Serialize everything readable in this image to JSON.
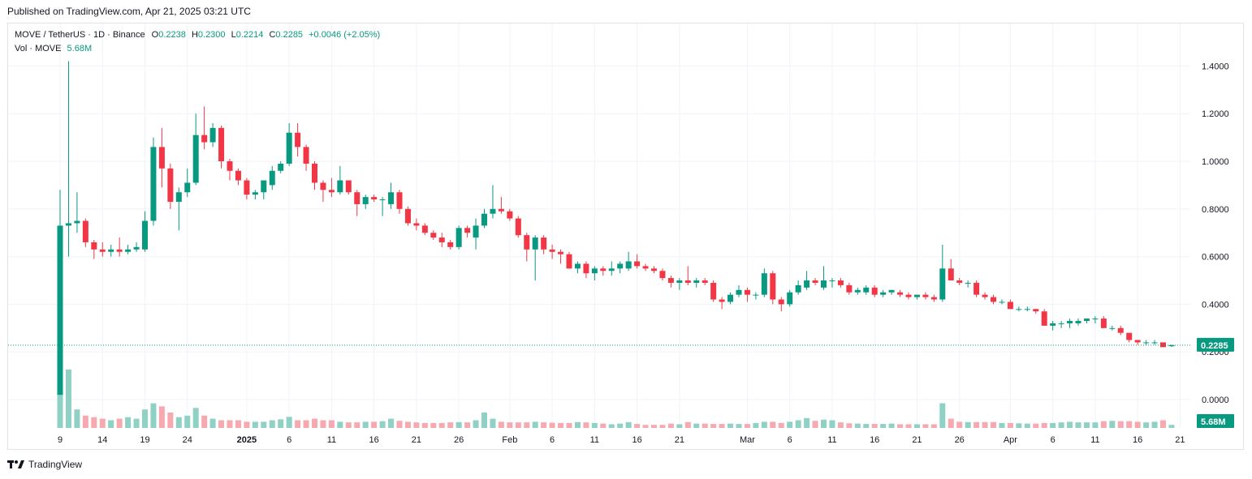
{
  "header": {
    "published": "Published on TradingView.com, Apr 21, 2025 03:21 UTC"
  },
  "legend": {
    "symbol": "MOVE / TetherUS · 1D · Binance",
    "open_label": "O",
    "open": "0.2238",
    "high_label": "H",
    "high": "0.2300",
    "low_label": "L",
    "low": "0.2214",
    "close_label": "C",
    "close": "0.2285",
    "change": "+0.0046 (+2.05%)",
    "vol_label": "Vol · MOVE",
    "vol_value": "5.68M"
  },
  "footer": {
    "brand": "TradingView"
  },
  "colors": {
    "up": "#089981",
    "down": "#f23645",
    "up_vol": "#8fd1c5",
    "down_vol": "#f7a9b0",
    "grid": "#f0f3fa"
  },
  "chart_data": {
    "type": "candlestick",
    "title": "MOVE / TetherUS · 1D · Binance",
    "ylabel": "",
    "ylim": [
      -0.12,
      1.5
    ],
    "yticks": [
      0.0,
      0.2,
      0.4,
      0.6,
      0.8,
      1.0,
      1.2,
      1.4
    ],
    "ytick_labels": [
      "0.0000",
      "0.2000",
      "0.4000",
      "0.6000",
      "0.8000",
      "1.0000",
      "1.2000",
      "1.4000"
    ],
    "last_price_label": "0.2285",
    "last_price": 0.2285,
    "volume_label": "5.68M",
    "x_ticks": [
      {
        "day": 0,
        "label": "9"
      },
      {
        "day": 5,
        "label": "14"
      },
      {
        "day": 10,
        "label": "19"
      },
      {
        "day": 15,
        "label": "24"
      },
      {
        "day": 22,
        "label": "2025"
      },
      {
        "day": 27,
        "label": "6"
      },
      {
        "day": 32,
        "label": "11"
      },
      {
        "day": 37,
        "label": "16"
      },
      {
        "day": 42,
        "label": "21"
      },
      {
        "day": 47,
        "label": "26"
      },
      {
        "day": 53,
        "label": "Feb"
      },
      {
        "day": 58,
        "label": "6"
      },
      {
        "day": 63,
        "label": "11"
      },
      {
        "day": 68,
        "label": "16"
      },
      {
        "day": 73,
        "label": "21"
      },
      {
        "day": 81,
        "label": "Mar"
      },
      {
        "day": 86,
        "label": "6"
      },
      {
        "day": 91,
        "label": "11"
      },
      {
        "day": 96,
        "label": "16"
      },
      {
        "day": 101,
        "label": "21"
      },
      {
        "day": 106,
        "label": "26"
      },
      {
        "day": 112,
        "label": "Apr"
      },
      {
        "day": 117,
        "label": "6"
      },
      {
        "day": 122,
        "label": "11"
      },
      {
        "day": 127,
        "label": "16"
      },
      {
        "day": 132,
        "label": "21"
      }
    ],
    "candles": [
      [
        0.02,
        0.88,
        0.02,
        0.73,
        31.0
      ],
      [
        0.73,
        1.42,
        0.6,
        0.74,
        19.0
      ],
      [
        0.74,
        0.87,
        0.7,
        0.75,
        6.0
      ],
      [
        0.75,
        0.76,
        0.64,
        0.66,
        4.0
      ],
      [
        0.66,
        0.67,
        0.59,
        0.63,
        3.5
      ],
      [
        0.63,
        0.66,
        0.6,
        0.62,
        3.0
      ],
      [
        0.62,
        0.65,
        0.6,
        0.63,
        2.5
      ],
      [
        0.63,
        0.68,
        0.6,
        0.62,
        3.0
      ],
      [
        0.62,
        0.65,
        0.61,
        0.63,
        3.5
      ],
      [
        0.63,
        0.66,
        0.62,
        0.64,
        3.0
      ],
      [
        0.63,
        0.79,
        0.62,
        0.75,
        6.0
      ],
      [
        0.75,
        1.1,
        0.73,
        1.06,
        8.0
      ],
      [
        1.06,
        1.14,
        0.89,
        0.97,
        7.0
      ],
      [
        0.97,
        0.99,
        0.8,
        0.83,
        5.0
      ],
      [
        0.83,
        0.89,
        0.71,
        0.87,
        3.5
      ],
      [
        0.87,
        0.97,
        0.85,
        0.91,
        4.0
      ],
      [
        0.91,
        1.2,
        0.9,
        1.11,
        6.5
      ],
      [
        1.11,
        1.23,
        1.05,
        1.08,
        4.0
      ],
      [
        1.08,
        1.16,
        1.06,
        1.14,
        3.0
      ],
      [
        1.14,
        1.15,
        0.97,
        1.0,
        2.5
      ],
      [
        1.0,
        1.01,
        0.92,
        0.96,
        2.5
      ],
      [
        0.96,
        0.97,
        0.9,
        0.92,
        2.5
      ],
      [
        0.92,
        0.93,
        0.84,
        0.86,
        2.0
      ],
      [
        0.86,
        0.88,
        0.84,
        0.87,
        2.0
      ],
      [
        0.87,
        0.91,
        0.84,
        0.92,
        2.0
      ],
      [
        0.9,
        0.98,
        0.88,
        0.96,
        2.5
      ],
      [
        0.96,
        1.0,
        0.95,
        0.99,
        2.8
      ],
      [
        0.99,
        1.16,
        0.98,
        1.12,
        3.6
      ],
      [
        1.12,
        1.16,
        1.02,
        1.06,
        2.5
      ],
      [
        1.06,
        1.07,
        0.96,
        0.99,
        2.5
      ],
      [
        0.99,
        1.0,
        0.88,
        0.91,
        3.0
      ],
      [
        0.91,
        0.92,
        0.83,
        0.88,
        2.5
      ],
      [
        0.88,
        0.93,
        0.85,
        0.87,
        2.5
      ],
      [
        0.87,
        0.98,
        0.86,
        0.92,
        2.0
      ],
      [
        0.92,
        0.92,
        0.86,
        0.87,
        1.8
      ],
      [
        0.87,
        0.88,
        0.77,
        0.82,
        1.8
      ],
      [
        0.82,
        0.86,
        0.8,
        0.85,
        2.0
      ],
      [
        0.85,
        0.86,
        0.83,
        0.84,
        2.0
      ],
      [
        0.84,
        0.85,
        0.77,
        0.84,
        2.2
      ],
      [
        0.82,
        0.91,
        0.8,
        0.87,
        3.0
      ],
      [
        0.87,
        0.88,
        0.78,
        0.8,
        2.3
      ],
      [
        0.8,
        0.81,
        0.73,
        0.74,
        2.0
      ],
      [
        0.74,
        0.76,
        0.71,
        0.73,
        1.8
      ],
      [
        0.73,
        0.74,
        0.69,
        0.7,
        1.6
      ],
      [
        0.7,
        0.71,
        0.67,
        0.68,
        1.6
      ],
      [
        0.68,
        0.7,
        0.64,
        0.66,
        1.6
      ],
      [
        0.66,
        0.67,
        0.63,
        0.64,
        1.8
      ],
      [
        0.64,
        0.73,
        0.63,
        0.72,
        1.9
      ],
      [
        0.72,
        0.73,
        0.68,
        0.7,
        1.8
      ],
      [
        0.68,
        0.76,
        0.63,
        0.73,
        2.5
      ],
      [
        0.73,
        0.8,
        0.72,
        0.78,
        5.0
      ],
      [
        0.78,
        0.9,
        0.76,
        0.8,
        3.0
      ],
      [
        0.8,
        0.85,
        0.78,
        0.79,
        2.0
      ],
      [
        0.79,
        0.8,
        0.75,
        0.76,
        1.8
      ],
      [
        0.76,
        0.77,
        0.68,
        0.69,
        1.8
      ],
      [
        0.69,
        0.7,
        0.58,
        0.63,
        1.8
      ],
      [
        0.63,
        0.69,
        0.5,
        0.68,
        2.0
      ],
      [
        0.68,
        0.69,
        0.61,
        0.63,
        1.8
      ],
      [
        0.63,
        0.65,
        0.59,
        0.62,
        1.7
      ],
      [
        0.62,
        0.63,
        0.57,
        0.61,
        1.6
      ],
      [
        0.61,
        0.62,
        0.55,
        0.55,
        1.6
      ],
      [
        0.55,
        0.58,
        0.53,
        0.57,
        1.9
      ],
      [
        0.57,
        0.58,
        0.51,
        0.53,
        1.8
      ],
      [
        0.53,
        0.56,
        0.5,
        0.55,
        1.6
      ],
      [
        0.55,
        0.56,
        0.52,
        0.54,
        1.4
      ],
      [
        0.54,
        0.58,
        0.52,
        0.55,
        1.2
      ],
      [
        0.55,
        0.58,
        0.53,
        0.57,
        1.4
      ],
      [
        0.55,
        0.62,
        0.54,
        0.58,
        1.9
      ],
      [
        0.58,
        0.61,
        0.55,
        0.56,
        1.3
      ],
      [
        0.56,
        0.57,
        0.54,
        0.55,
        1.0
      ],
      [
        0.55,
        0.56,
        0.53,
        0.54,
        1.0
      ],
      [
        0.54,
        0.55,
        0.5,
        0.51,
        1.0
      ],
      [
        0.51,
        0.52,
        0.47,
        0.49,
        1.4
      ],
      [
        0.49,
        0.51,
        0.46,
        0.5,
        1.2
      ],
      [
        0.5,
        0.56,
        0.48,
        0.49,
        1.9
      ],
      [
        0.49,
        0.51,
        0.47,
        0.5,
        1.4
      ],
      [
        0.5,
        0.51,
        0.48,
        0.49,
        1.4
      ],
      [
        0.49,
        0.5,
        0.41,
        0.42,
        1.3
      ],
      [
        0.42,
        0.43,
        0.38,
        0.41,
        1.3
      ],
      [
        0.41,
        0.45,
        0.4,
        0.44,
        1.4
      ],
      [
        0.44,
        0.48,
        0.43,
        0.46,
        1.3
      ],
      [
        0.46,
        0.47,
        0.41,
        0.44,
        1.3
      ],
      [
        0.44,
        0.45,
        0.42,
        0.44,
        1.6
      ],
      [
        0.44,
        0.55,
        0.43,
        0.53,
        2.0
      ],
      [
        0.53,
        0.54,
        0.4,
        0.42,
        2.0
      ],
      [
        0.42,
        0.43,
        0.37,
        0.4,
        1.6
      ],
      [
        0.4,
        0.46,
        0.39,
        0.45,
        2.0
      ],
      [
        0.45,
        0.5,
        0.44,
        0.48,
        2.5
      ],
      [
        0.47,
        0.54,
        0.46,
        0.5,
        3.2
      ],
      [
        0.5,
        0.51,
        0.48,
        0.49,
        2.3
      ],
      [
        0.47,
        0.56,
        0.46,
        0.5,
        2.7
      ],
      [
        0.5,
        0.51,
        0.47,
        0.5,
        2.5
      ],
      [
        0.5,
        0.51,
        0.47,
        0.48,
        1.8
      ],
      [
        0.48,
        0.49,
        0.44,
        0.45,
        1.5
      ],
      [
        0.45,
        0.47,
        0.44,
        0.46,
        1.4
      ],
      [
        0.45,
        0.48,
        0.44,
        0.47,
        1.3
      ],
      [
        0.47,
        0.48,
        0.43,
        0.44,
        1.3
      ],
      [
        0.44,
        0.46,
        0.43,
        0.45,
        1.3
      ],
      [
        0.45,
        0.46,
        0.44,
        0.46,
        1.4
      ],
      [
        0.45,
        0.46,
        0.43,
        0.44,
        1.2
      ],
      [
        0.44,
        0.45,
        0.42,
        0.43,
        1.2
      ],
      [
        0.43,
        0.44,
        0.42,
        0.44,
        1.2
      ],
      [
        0.44,
        0.45,
        0.42,
        0.43,
        1.2
      ],
      [
        0.43,
        0.44,
        0.41,
        0.42,
        1.2
      ],
      [
        0.42,
        0.65,
        0.41,
        0.55,
        8.0
      ],
      [
        0.55,
        0.59,
        0.5,
        0.5,
        3.0
      ],
      [
        0.5,
        0.51,
        0.48,
        0.49,
        2.0
      ],
      [
        0.49,
        0.5,
        0.47,
        0.49,
        1.9
      ],
      [
        0.49,
        0.5,
        0.43,
        0.44,
        1.9
      ],
      [
        0.44,
        0.45,
        0.42,
        0.43,
        1.9
      ],
      [
        0.43,
        0.44,
        0.4,
        0.41,
        1.9
      ],
      [
        0.41,
        0.42,
        0.4,
        0.41,
        1.6
      ],
      [
        0.41,
        0.42,
        0.38,
        0.38,
        1.6
      ],
      [
        0.38,
        0.39,
        0.37,
        0.38,
        1.5
      ],
      [
        0.38,
        0.39,
        0.37,
        0.38,
        1.4
      ],
      [
        0.38,
        0.38,
        0.36,
        0.37,
        1.4
      ],
      [
        0.37,
        0.38,
        0.31,
        0.31,
        1.6
      ],
      [
        0.31,
        0.33,
        0.29,
        0.32,
        1.6
      ],
      [
        0.32,
        0.33,
        0.3,
        0.32,
        1.8
      ],
      [
        0.32,
        0.34,
        0.3,
        0.33,
        2.0
      ],
      [
        0.32,
        0.34,
        0.31,
        0.33,
        1.8
      ],
      [
        0.33,
        0.34,
        0.32,
        0.34,
        1.8
      ],
      [
        0.34,
        0.35,
        0.32,
        0.34,
        1.8
      ],
      [
        0.34,
        0.35,
        0.3,
        0.3,
        2.2
      ],
      [
        0.3,
        0.31,
        0.29,
        0.3,
        2.3
      ],
      [
        0.3,
        0.31,
        0.27,
        0.28,
        2.2
      ],
      [
        0.28,
        0.28,
        0.24,
        0.25,
        2.2
      ],
      [
        0.25,
        0.25,
        0.23,
        0.24,
        2.0
      ],
      [
        0.24,
        0.25,
        0.23,
        0.24,
        1.8
      ],
      [
        0.24,
        0.25,
        0.23,
        0.24,
        2.0
      ],
      [
        0.24,
        0.24,
        0.22,
        0.22,
        2.5
      ],
      [
        0.2238,
        0.23,
        0.2214,
        0.2285,
        1.0
      ]
    ]
  }
}
